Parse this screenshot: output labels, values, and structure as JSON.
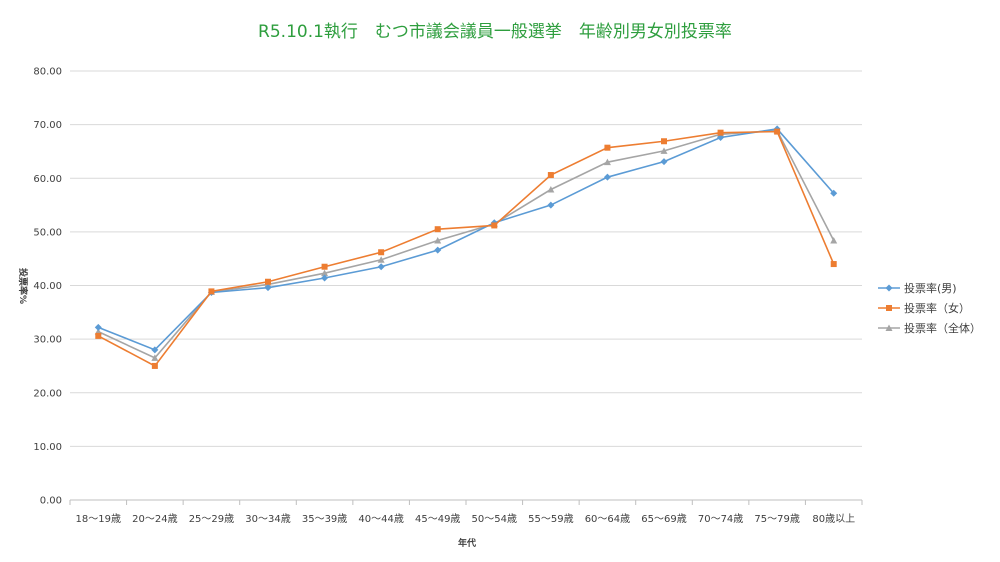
{
  "chart_data": {
    "type": "line",
    "title": "R5.10.1執行　むつ市議会議員一般選挙　年齢別男女別投票率",
    "xlabel": "年代",
    "ylabel": "投票率%",
    "ylim": [
      0,
      80
    ],
    "yticks": [
      "0.00",
      "10.00",
      "20.00",
      "30.00",
      "40.00",
      "50.00",
      "60.00",
      "70.00",
      "80.00"
    ],
    "grid": true,
    "legend_position": "right",
    "categories": [
      "18～19歳",
      "20～24歳",
      "25～29歳",
      "30～34歳",
      "35～39歳",
      "40～44歳",
      "45～49歳",
      "50～54歳",
      "55～59歳",
      "60～64歳",
      "65～69歳",
      "70～74歳",
      "75～79歳",
      "80歳以上"
    ],
    "series": [
      {
        "name": "投票率(男)",
        "color": "#5b9bd5",
        "marker": "diamond",
        "values": [
          32.2,
          28.0,
          38.7,
          39.6,
          41.4,
          43.5,
          46.6,
          51.7,
          55.0,
          60.2,
          63.1,
          67.6,
          69.2,
          57.2
        ]
      },
      {
        "name": "投票率（女）",
        "color": "#ed7d31",
        "marker": "square",
        "values": [
          30.6,
          25.0,
          38.9,
          40.7,
          43.5,
          46.2,
          50.5,
          51.2,
          60.6,
          65.7,
          66.9,
          68.5,
          68.7,
          44.0
        ]
      },
      {
        "name": "投票率（全体）",
        "color": "#a5a5a5",
        "marker": "triangle",
        "values": [
          31.4,
          26.5,
          38.8,
          40.2,
          42.3,
          44.8,
          48.4,
          51.5,
          57.9,
          63.0,
          65.1,
          68.2,
          68.9,
          48.4
        ]
      }
    ]
  }
}
